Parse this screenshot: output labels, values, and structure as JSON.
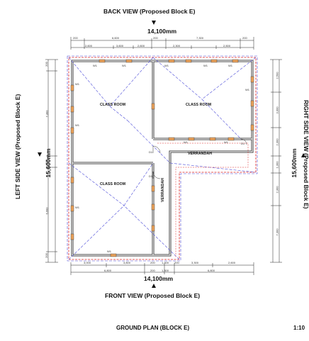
{
  "views": {
    "back": "BACK VIEW  (Proposed Block E)",
    "front": "FRONT VIEW  (Proposed Block E)",
    "left": "LEFT SIDE VIEW  (Proposed Block E)",
    "right": "RIGHT SIDE VIEW  (Proposed Block E)"
  },
  "dimensions": {
    "overall_width": "14,100mm",
    "overall_depth": "15,600mm",
    "top_row_1": [
      "200",
      "6,600",
      "200",
      "7,300",
      "200"
    ],
    "top_row_2": [
      "2,600",
      "3,600",
      "2,600",
      "2,300",
      "2,500"
    ],
    "bottom_row_1": [
      "3,000",
      "3,800",
      "200",
      "1,300",
      "200",
      "3,300",
      "2,600"
    ],
    "bottom_row_2": [
      "6,800",
      "200",
      "1,300",
      "6,800"
    ],
    "left_col": [
      "200",
      "7,300",
      "200",
      "6,600",
      "200"
    ],
    "right_col": [
      "2,500",
      "3,000",
      "2,300",
      "1,300",
      "2,300",
      "7,300"
    ]
  },
  "rooms": {
    "class_room_1": "CLASS ROOM",
    "class_room_2": "CLASS ROOM",
    "class_room_3": "CLASS ROOM",
    "verrandah_h": "VERRANDAH",
    "verrandah_v": "VERRANDAH"
  },
  "tags": {
    "window": "W1",
    "door": "D1"
  },
  "footer": {
    "title": "GROUND PLAN  (BLOCK E)",
    "scale": "1:10"
  }
}
